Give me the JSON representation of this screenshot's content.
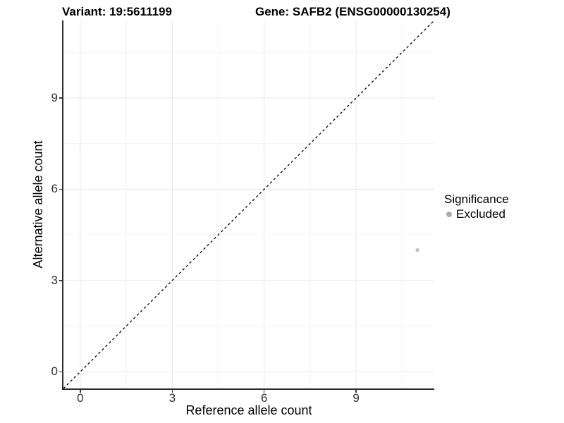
{
  "titles": {
    "variant": "Variant: 19:5611199",
    "gene": "Gene: SAFB2 (ENSG00000130254)"
  },
  "axes": {
    "x": {
      "label": "Reference allele count"
    },
    "y": {
      "label": "Alternative allele count"
    }
  },
  "legend": {
    "title": "Significance",
    "items": [
      {
        "label": "Excluded",
        "color": "#aaaaaa"
      }
    ]
  },
  "colors": {
    "background": "#ffffff",
    "axis_line": "#2b2b2b",
    "tick_text": "#333333",
    "grid_major": "#e8e8e8",
    "grid_minor": "#f4f4f4",
    "reference_line": "#000000",
    "point": "#c2c2c2"
  },
  "chart_data": {
    "type": "scatter",
    "title": "Variant: 19:5611199 | Gene: SAFB2 (ENSG00000130254)",
    "xlabel": "Reference allele count",
    "ylabel": "Alternative allele count",
    "xlim": [
      -0.55,
      11.55
    ],
    "ylim": [
      -0.55,
      11.55
    ],
    "xticks": [
      0,
      3,
      6,
      9
    ],
    "yticks": [
      0,
      3,
      6,
      9
    ],
    "x_minor_breaks": [
      1.5,
      4.5,
      7.5,
      10.5
    ],
    "y_minor_breaks": [
      1.5,
      4.5,
      7.5,
      10.5
    ],
    "grid": "major+minor",
    "legend_position": "right",
    "legend_title": "Significance",
    "series": [
      {
        "name": "Excluded",
        "color": "#c2c2c2",
        "points": [
          {
            "x": 11,
            "y": 4
          }
        ]
      }
    ],
    "annotations": [
      {
        "type": "abline",
        "slope": 1,
        "intercept": 0,
        "linetype": "dashed",
        "color": "#000000"
      }
    ]
  }
}
